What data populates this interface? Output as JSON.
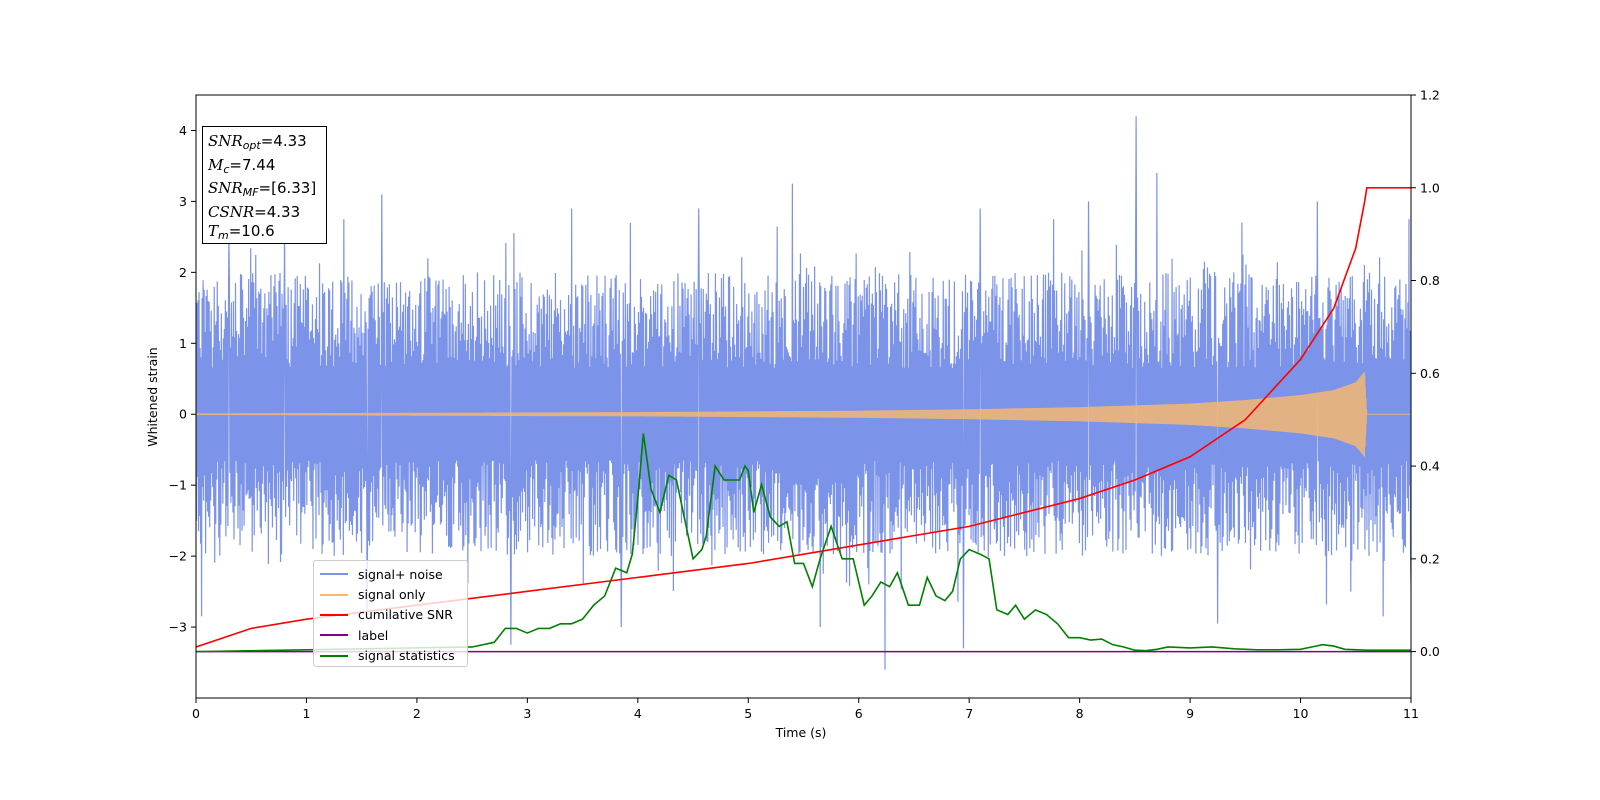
{
  "chart_data": {
    "type": "line",
    "title": "",
    "xlabel": "Time (s)",
    "ylabel": "Whitened strain",
    "xlim": [
      0,
      11
    ],
    "ylim": [
      -4,
      4.5
    ],
    "y2lim": [
      -0.1,
      1.2
    ],
    "x_ticks": [
      "0",
      "1",
      "2",
      "3",
      "4",
      "5",
      "6",
      "7",
      "8",
      "9",
      "10",
      "11"
    ],
    "y_ticks": [
      "−3",
      "−2",
      "−1",
      "0",
      "1",
      "2",
      "3",
      "4"
    ],
    "y2_ticks": [
      "0.0",
      "0.2",
      "0.4",
      "0.6",
      "0.8",
      "1.0",
      "1.2"
    ],
    "annotations": {
      "snr_opt": "=4.33",
      "mc": "=7.44",
      "snr_mf": "=[6.33]",
      "csnr": "=4.33",
      "tm": "=10.6"
    },
    "legend_position": "lower-left",
    "series": [
      {
        "name": "signal+ noise",
        "color": "#7b93e8",
        "axis": "left",
        "note": "noise band roughly between -1.6 and 1.5 with spikes",
        "spikes": [
          [
            0.3,
            2.5
          ],
          [
            0.8,
            2.6
          ],
          [
            1.68,
            3.1
          ],
          [
            2.55,
            2.0
          ],
          [
            3.4,
            2.9
          ],
          [
            4.55,
            2.9
          ],
          [
            5.4,
            3.25
          ],
          [
            7.1,
            2.9
          ],
          [
            8.08,
            3.0
          ],
          [
            8.51,
            4.2
          ],
          [
            8.7,
            3.4
          ],
          [
            10.15,
            3.0
          ],
          [
            0.05,
            -2.85
          ],
          [
            1.55,
            -2.8
          ],
          [
            2.85,
            -3.25
          ],
          [
            3.85,
            -3.0
          ],
          [
            5.65,
            -3.0
          ],
          [
            6.24,
            -3.6
          ],
          [
            6.95,
            -3.3
          ],
          [
            9.25,
            -2.95
          ],
          [
            10.75,
            -2.85
          ],
          [
            11.0,
            -2.4
          ]
        ]
      },
      {
        "name": "signal only",
        "color": "#f5b773",
        "axis": "left",
        "envelope": [
          [
            0,
            0.01
          ],
          [
            2,
            0.02
          ],
          [
            4,
            0.03
          ],
          [
            6,
            0.05
          ],
          [
            7,
            0.07
          ],
          [
            8,
            0.1
          ],
          [
            9,
            0.15
          ],
          [
            9.5,
            0.2
          ],
          [
            10,
            0.27
          ],
          [
            10.3,
            0.34
          ],
          [
            10.5,
            0.45
          ],
          [
            10.58,
            0.6
          ],
          [
            10.6,
            0.02
          ],
          [
            11,
            0.0
          ]
        ]
      },
      {
        "name": "cumilative SNR",
        "color": "#ff0000",
        "axis": "right",
        "x": [
          0,
          0.5,
          1,
          2,
          3,
          4,
          5,
          6,
          7,
          7.5,
          8,
          8.5,
          9,
          9.5,
          10,
          10.3,
          10.5,
          10.58,
          10.6,
          11
        ],
        "y": [
          0.01,
          0.05,
          0.07,
          0.1,
          0.13,
          0.16,
          0.19,
          0.23,
          0.27,
          0.3,
          0.33,
          0.37,
          0.42,
          0.5,
          0.63,
          0.74,
          0.87,
          0.97,
          1.0,
          1.0
        ]
      },
      {
        "name": "label",
        "color": "#800080",
        "axis": "right",
        "x": [
          0,
          11
        ],
        "y": [
          0,
          0
        ]
      },
      {
        "name": "signal statistics",
        "color": "#008000",
        "axis": "right",
        "x": [
          0,
          2.5,
          2.7,
          2.8,
          2.9,
          3.0,
          3.1,
          3.2,
          3.3,
          3.4,
          3.5,
          3.6,
          3.7,
          3.8,
          3.9,
          3.95,
          4.0,
          4.05,
          4.12,
          4.2,
          4.28,
          4.35,
          4.42,
          4.5,
          4.58,
          4.62,
          4.7,
          4.78,
          4.86,
          4.92,
          4.97,
          5.0,
          5.05,
          5.12,
          5.2,
          5.28,
          5.35,
          5.42,
          5.5,
          5.58,
          5.65,
          5.75,
          5.85,
          5.95,
          6.05,
          6.12,
          6.2,
          6.28,
          6.35,
          6.45,
          6.55,
          6.62,
          6.7,
          6.78,
          6.85,
          6.92,
          7.0,
          7.1,
          7.18,
          7.25,
          7.35,
          7.42,
          7.5,
          7.6,
          7.7,
          7.8,
          7.9,
          8.0,
          8.1,
          8.2,
          8.3,
          8.4,
          8.5,
          8.6,
          8.7,
          8.8,
          9.0,
          9.2,
          9.4,
          9.6,
          9.8,
          10.0,
          10.1,
          10.2,
          10.3,
          10.4,
          10.6,
          11.0
        ],
        "y": [
          0,
          0.01,
          0.02,
          0.05,
          0.05,
          0.04,
          0.05,
          0.05,
          0.06,
          0.06,
          0.07,
          0.1,
          0.12,
          0.18,
          0.17,
          0.21,
          0.33,
          0.47,
          0.35,
          0.3,
          0.38,
          0.37,
          0.29,
          0.2,
          0.22,
          0.25,
          0.4,
          0.37,
          0.37,
          0.37,
          0.4,
          0.39,
          0.3,
          0.36,
          0.29,
          0.27,
          0.28,
          0.19,
          0.19,
          0.14,
          0.2,
          0.27,
          0.2,
          0.2,
          0.1,
          0.12,
          0.15,
          0.14,
          0.17,
          0.1,
          0.1,
          0.16,
          0.12,
          0.11,
          0.13,
          0.2,
          0.22,
          0.21,
          0.2,
          0.09,
          0.08,
          0.1,
          0.07,
          0.09,
          0.08,
          0.06,
          0.03,
          0.03,
          0.025,
          0.027,
          0.015,
          0.01,
          0.003,
          0.002,
          0.005,
          0.01,
          0.008,
          0.01,
          0.006,
          0.004,
          0.004,
          0.005,
          0.01,
          0.015,
          0.012,
          0.005,
          0.003,
          0.003
        ]
      }
    ]
  }
}
